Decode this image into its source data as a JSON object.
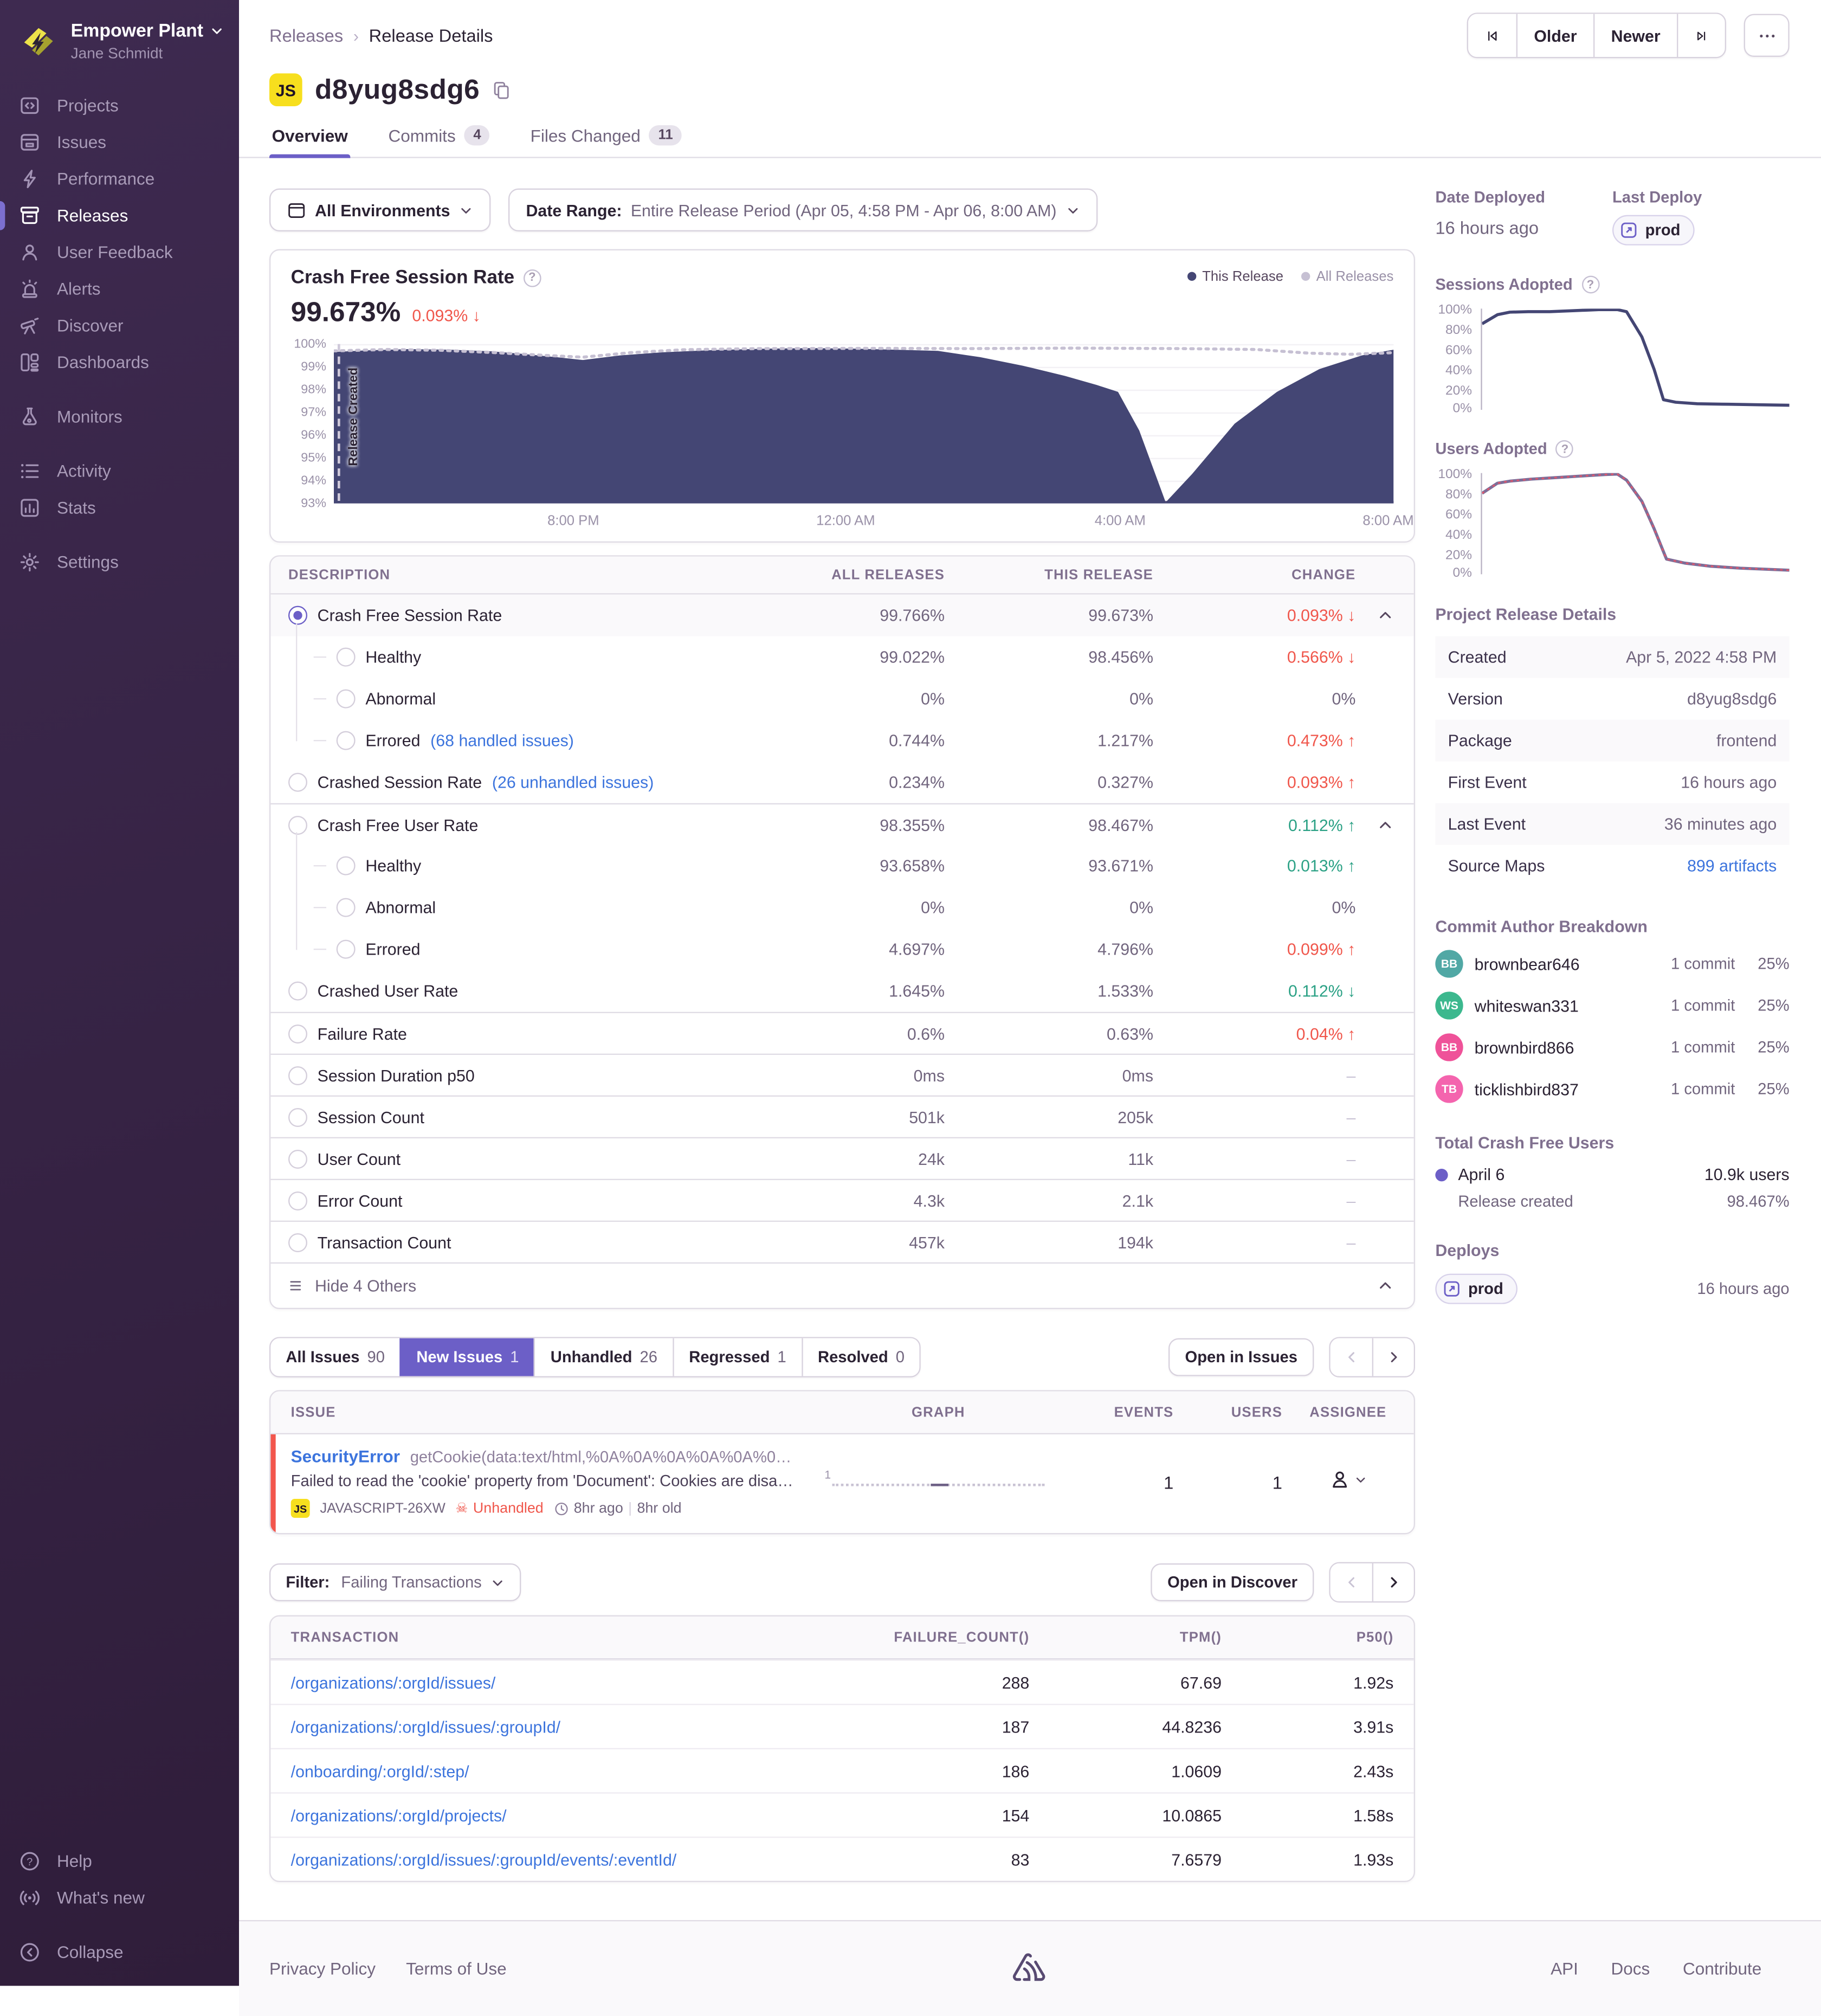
{
  "colors": {
    "accent": "#6C5FC7",
    "red": "#F0564B",
    "green": "#2BA185",
    "blue": "#3C74DD",
    "chart_fill": "#444674",
    "chart_all": "#C6C0D3",
    "platform_yellow": "#F7DF1E",
    "issue_bar": "#F2564D"
  },
  "sidebar": {
    "org": "Empower Plant",
    "user": "Jane Schmidt",
    "items": [
      "Projects",
      "Issues",
      "Performance",
      "Releases",
      "User Feedback",
      "Alerts",
      "Discover",
      "Dashboards",
      "Monitors",
      "Activity",
      "Stats",
      "Settings"
    ],
    "footer_items": [
      "Help",
      "What's new",
      "Collapse"
    ]
  },
  "topbar": {
    "breadcrumb_parent": "Releases",
    "breadcrumb_current": "Release Details",
    "older": "Older",
    "newer": "Newer"
  },
  "release": {
    "platform_badge": "JS",
    "version": "d8yug8sdg6"
  },
  "tabs": {
    "overview": "Overview",
    "commits": "Commits",
    "commits_count": "4",
    "files": "Files Changed",
    "files_count": "11"
  },
  "filters": {
    "environments": "All Environments",
    "date_label": "Date Range:",
    "date_value": "Entire Release Period (Apr 05, 4:58 PM - Apr 06, 8:00 AM)"
  },
  "chart": {
    "title": "Crash Free Session Rate",
    "value": "99.673%",
    "change": "0.093%",
    "change_arrow": "↓",
    "legend_this": "This Release",
    "legend_all": "All Releases",
    "annotation": "Release Created",
    "y_ticks": [
      "100%",
      "99%",
      "98%",
      "97%",
      "96%",
      "95%",
      "94%",
      "93%"
    ],
    "x_ticks": [
      "8:00 PM",
      "12:00 AM",
      "4:00 AM",
      "8:00 AM"
    ]
  },
  "chart_data": [
    {
      "id": "crash_free_session_rate",
      "type": "area",
      "title": "Crash Free Session Rate",
      "unit": "%",
      "ylim": [
        93,
        100
      ],
      "x_ticks": [
        "8:00 PM",
        "12:00 AM",
        "4:00 AM",
        "8:00 AM"
      ],
      "x_tick_pos": [
        0.226,
        0.483,
        0.742,
        0.995
      ],
      "series": [
        {
          "name": "This Release",
          "points": [
            [
              0,
              99.65
            ],
            [
              0.03,
              99.72
            ],
            [
              0.07,
              99.78
            ],
            [
              0.11,
              99.75
            ],
            [
              0.15,
              99.68
            ],
            [
              0.18,
              99.56
            ],
            [
              0.21,
              99.42
            ],
            [
              0.235,
              99.3
            ],
            [
              0.27,
              99.5
            ],
            [
              0.31,
              99.64
            ],
            [
              0.36,
              99.74
            ],
            [
              0.41,
              99.8
            ],
            [
              0.45,
              99.82
            ],
            [
              0.49,
              99.8
            ],
            [
              0.53,
              99.75
            ],
            [
              0.57,
              99.7
            ],
            [
              0.61,
              99.42
            ],
            [
              0.65,
              99.05
            ],
            [
              0.69,
              98.6
            ],
            [
              0.72,
              98.2
            ],
            [
              0.74,
              97.9
            ],
            [
              0.76,
              96.2
            ],
            [
              0.785,
              93.05
            ],
            [
              0.81,
              94.3
            ],
            [
              0.85,
              96.5
            ],
            [
              0.89,
              97.9
            ],
            [
              0.93,
              98.9
            ],
            [
              0.97,
              99.5
            ],
            [
              1,
              99.75
            ]
          ]
        },
        {
          "name": "All Releases",
          "points": [
            [
              0,
              99.7
            ],
            [
              0.05,
              99.76
            ],
            [
              0.1,
              99.73
            ],
            [
              0.15,
              99.63
            ],
            [
              0.2,
              99.5
            ],
            [
              0.235,
              99.42
            ],
            [
              0.28,
              99.62
            ],
            [
              0.33,
              99.75
            ],
            [
              0.4,
              99.8
            ],
            [
              0.5,
              99.81
            ],
            [
              0.6,
              99.8
            ],
            [
              0.7,
              99.82
            ],
            [
              0.8,
              99.8
            ],
            [
              0.87,
              99.76
            ],
            [
              0.92,
              99.6
            ],
            [
              0.96,
              99.55
            ],
            [
              1,
              99.62
            ]
          ]
        }
      ]
    },
    {
      "id": "sessions_adopted",
      "type": "line",
      "title": "Sessions Adopted",
      "unit": "%",
      "ylim": [
        0,
        100
      ],
      "series": [
        {
          "name": "Sessions Adopted",
          "points": [
            [
              0,
              85
            ],
            [
              0.05,
              94
            ],
            [
              0.09,
              96.5
            ],
            [
              0.15,
              97
            ],
            [
              0.22,
              97
            ],
            [
              0.3,
              98
            ],
            [
              0.38,
              99
            ],
            [
              0.44,
              99
            ],
            [
              0.47,
              97
            ],
            [
              0.52,
              72
            ],
            [
              0.56,
              40
            ],
            [
              0.59,
              10
            ],
            [
              0.63,
              7.5
            ],
            [
              0.7,
              6
            ],
            [
              0.8,
              5.5
            ],
            [
              0.9,
              5
            ],
            [
              1,
              4.5
            ]
          ]
        }
      ]
    },
    {
      "id": "users_adopted",
      "type": "line",
      "title": "Users Adopted",
      "unit": "%",
      "ylim": [
        0,
        100
      ],
      "series": [
        {
          "name": "Users Adopted",
          "points": [
            [
              0,
              80
            ],
            [
              0.05,
              90
            ],
            [
              0.09,
              92
            ],
            [
              0.16,
              94
            ],
            [
              0.24,
              95.5
            ],
            [
              0.32,
              97
            ],
            [
              0.4,
              98.5
            ],
            [
              0.44,
              99
            ],
            [
              0.47,
              93
            ],
            [
              0.52,
              72
            ],
            [
              0.56,
              45
            ],
            [
              0.6,
              15
            ],
            [
              0.66,
              11
            ],
            [
              0.74,
              8
            ],
            [
              0.84,
              6
            ],
            [
              0.92,
              5
            ],
            [
              1,
              4
            ]
          ]
        }
      ]
    }
  ],
  "metrics": {
    "headers": [
      "DESCRIPTION",
      "ALL RELEASES",
      "THIS RELEASE",
      "CHANGE"
    ],
    "rows": [
      {
        "label": "Crash Free Session Rate",
        "link": "",
        "all": "99.766%",
        "this": "99.673%",
        "change": "0.093%",
        "arrow": "↓"
      },
      {
        "label": "Healthy",
        "link": "",
        "all": "99.022%",
        "this": "98.456%",
        "change": "0.566%",
        "arrow": "↓"
      },
      {
        "label": "Abnormal",
        "link": "",
        "all": "0%",
        "this": "0%",
        "change": "0%",
        "arrow": ""
      },
      {
        "label": "Errored",
        "link": "(68 handled issues)",
        "all": "0.744%",
        "this": "1.217%",
        "change": "0.473%",
        "arrow": "↑"
      },
      {
        "label": "Crashed Session Rate",
        "link": "(26 unhandled issues)",
        "all": "0.234%",
        "this": "0.327%",
        "change": "0.093%",
        "arrow": "↑"
      },
      {
        "label": "Crash Free User Rate",
        "link": "",
        "all": "98.355%",
        "this": "98.467%",
        "change": "0.112%",
        "arrow": "↑"
      },
      {
        "label": "Healthy",
        "link": "",
        "all": "93.658%",
        "this": "93.671%",
        "change": "0.013%",
        "arrow": "↑"
      },
      {
        "label": "Abnormal",
        "link": "",
        "all": "0%",
        "this": "0%",
        "change": "0%",
        "arrow": ""
      },
      {
        "label": "Errored",
        "link": "",
        "all": "4.697%",
        "this": "4.796%",
        "change": "0.099%",
        "arrow": "↑"
      },
      {
        "label": "Crashed User Rate",
        "link": "",
        "all": "1.645%",
        "this": "1.533%",
        "change": "0.112%",
        "arrow": "↓"
      },
      {
        "label": "Failure Rate",
        "link": "",
        "all": "0.6%",
        "this": "0.63%",
        "change": "0.04%",
        "arrow": "↑"
      },
      {
        "label": "Session Duration p50",
        "link": "",
        "all": "0ms",
        "this": "0ms",
        "change": "–",
        "arrow": ""
      },
      {
        "label": "Session Count",
        "link": "",
        "all": "501k",
        "this": "205k",
        "change": "–",
        "arrow": ""
      },
      {
        "label": "User Count",
        "link": "",
        "all": "24k",
        "this": "11k",
        "change": "–",
        "arrow": ""
      },
      {
        "label": "Error Count",
        "link": "",
        "all": "4.3k",
        "this": "2.1k",
        "change": "–",
        "arrow": ""
      },
      {
        "label": "Transaction Count",
        "link": "",
        "all": "457k",
        "this": "194k",
        "change": "–",
        "arrow": ""
      }
    ],
    "footer": "Hide 4 Others"
  },
  "issues": {
    "tabs": [
      {
        "label": "All Issues",
        "count": "90"
      },
      {
        "label": "New Issues",
        "count": "1"
      },
      {
        "label": "Unhandled",
        "count": "26"
      },
      {
        "label": "Regressed",
        "count": "1"
      },
      {
        "label": "Resolved",
        "count": "0"
      }
    ],
    "open_label": "Open in Issues",
    "headers": [
      "ISSUE",
      "GRAPH",
      "EVENTS",
      "USERS",
      "ASSIGNEE"
    ],
    "row": {
      "title": "SecurityError",
      "culprit": "getCookie(data:text/html,%0A%0A%0A%0A%0A%0…",
      "message": "Failed to read the 'cookie' property from 'Document': Cookies are disa…",
      "platform": "JS",
      "short_id": "JAVASCRIPT-26XW",
      "unhandled": "Unhandled",
      "age": "8hr ago",
      "age_old": "8hr old",
      "graph_label": "1",
      "events": "1",
      "users": "1"
    }
  },
  "transactions": {
    "filter_label": "Filter:",
    "filter_value": "Failing Transactions",
    "open_label": "Open in Discover",
    "headers": [
      "TRANSACTION",
      "FAILURE_COUNT()",
      "TPM()",
      "P50()"
    ],
    "rows": [
      {
        "path": "/organizations/:orgId/issues/",
        "failures": "288",
        "tpm": "67.69",
        "p50": "1.92s"
      },
      {
        "path": "/organizations/:orgId/issues/:groupId/",
        "failures": "187",
        "tpm": "44.8236",
        "p50": "3.91s"
      },
      {
        "path": "/onboarding/:orgId/:step/",
        "failures": "186",
        "tpm": "1.0609",
        "p50": "2.43s"
      },
      {
        "path": "/organizations/:orgId/projects/",
        "failures": "154",
        "tpm": "10.0865",
        "p50": "1.58s"
      },
      {
        "path": "/organizations/:orgId/issues/:groupId/events/:eventId/",
        "failures": "83",
        "tpm": "7.6579",
        "p50": "1.93s"
      }
    ]
  },
  "aside": {
    "deployed_label": "Date Deployed",
    "deployed_value": "16 hours ago",
    "last_deploy_label": "Last Deploy",
    "deploy_env": "prod",
    "sessions_title": "Sessions Adopted",
    "users_title": "Users Adopted",
    "adoption_ticks": [
      "100%",
      "80%",
      "60%",
      "40%",
      "20%",
      "0%"
    ],
    "details_title": "Project Release Details",
    "details": [
      {
        "label": "Created",
        "value": "Apr 5, 2022 4:58 PM"
      },
      {
        "label": "Version",
        "value": "d8yug8sdg6"
      },
      {
        "label": "Package",
        "value": "frontend"
      },
      {
        "label": "First Event",
        "value": "16 hours ago"
      },
      {
        "label": "Last Event",
        "value": "36 minutes ago"
      },
      {
        "label": "Source Maps",
        "value": "899 artifacts"
      }
    ],
    "commits_title": "Commit Author Breakdown",
    "authors": [
      {
        "initials": "BB",
        "name": "brownbear646",
        "commits": "1 commit",
        "pct": "25%",
        "color": "#51A8A5"
      },
      {
        "initials": "WS",
        "name": "whiteswan331",
        "commits": "1 commit",
        "pct": "25%",
        "color": "#3CB88E"
      },
      {
        "initials": "BB",
        "name": "brownbird866",
        "commits": "1 commit",
        "pct": "25%",
        "color": "#EF5299"
      },
      {
        "initials": "TB",
        "name": "ticklishbird837",
        "commits": "1 commit",
        "pct": "25%",
        "color": "#F464AE"
      }
    ],
    "tcfu_title": "Total Crash Free Users",
    "tcfu_date": "April 6",
    "tcfu_users": "10.9k users",
    "tcfu_sub": "Release created",
    "tcfu_pct": "98.467%",
    "deploys_title": "Deploys",
    "deploy_time": "16 hours ago"
  },
  "footer": {
    "privacy": "Privacy Policy",
    "terms": "Terms of Use",
    "api": "API",
    "docs": "Docs",
    "contribute": "Contribute"
  }
}
